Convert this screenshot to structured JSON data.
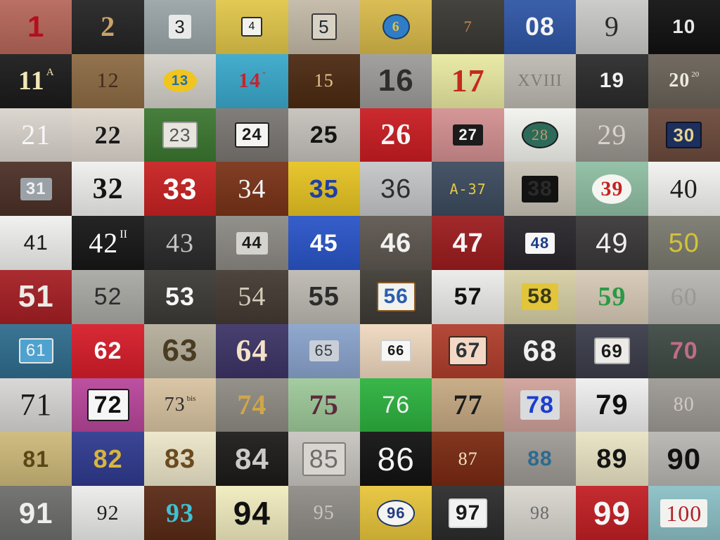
{
  "mosaic": {
    "tiles": [
      {
        "label": "1",
        "bg": "#b6675a",
        "fg": "#b30f1e",
        "font": "sans",
        "size": 42,
        "bold": true
      },
      {
        "label": "2",
        "bg": "#242424",
        "fg": "#c9a36a",
        "font": "serif",
        "size": 40,
        "bold": true
      },
      {
        "label": "3",
        "bg": "#9aa4a6",
        "fg": "#1d1d1d",
        "font": "sans",
        "size": 26,
        "bold": false,
        "plate": "#e8eaea"
      },
      {
        "label": "4",
        "bg": "#e1c64a",
        "fg": "#1a1a1a",
        "font": "sans",
        "size": 16,
        "bold": false,
        "plate": "#f2f2ee",
        "border": "#2c2c2c"
      },
      {
        "label": "5",
        "bg": "#c3b9a7",
        "fg": "#1f2a34",
        "font": "sans",
        "size": 26,
        "bold": false,
        "plate": "#d8d2c4",
        "border": "#3a3a3a"
      },
      {
        "label": "6",
        "bg": "#d8b94a",
        "fg": "#e4c03c",
        "font": "serif",
        "size": 20,
        "bold": true,
        "plate": "#2f7dc7",
        "border": "#1c3d66",
        "radius": "50%"
      },
      {
        "label": "7",
        "bg": "#3a3833",
        "fg": "#c68a52",
        "font": "serif",
        "size": 22,
        "bold": false
      },
      {
        "label": "08",
        "bg": "#2f56a5",
        "fg": "#f4f4f4",
        "font": "sans",
        "size": 36,
        "bold": true
      },
      {
        "label": "9",
        "bg": "#c9c9c7",
        "fg": "#2b2b2b",
        "font": "serif",
        "size": 40,
        "bold": false
      },
      {
        "label": "10",
        "bg": "#111111",
        "fg": "#e7e7e7",
        "font": "sans",
        "size": 28,
        "bold": true
      },
      {
        "label": "11",
        "sup": "A",
        "bg": "#1b1b1b",
        "fg": "#f2e7b7",
        "font": "serif",
        "size": 38,
        "bold": true
      },
      {
        "label": "12",
        "bg": "#8d6b44",
        "fg": "#3f2c1c",
        "font": "serif",
        "size": 30,
        "bold": false
      },
      {
        "label": "13",
        "bg": "#d3d0c9",
        "fg": "#246ca8",
        "font": "sans",
        "size": 20,
        "bold": true,
        "plate": "#f0c51f",
        "radius": "50%"
      },
      {
        "label": "14",
        "sup": "\"",
        "bg": "#3aa8cb",
        "fg": "#c7242e",
        "font": "serif",
        "size": 30,
        "bold": true
      },
      {
        "label": "15",
        "bg": "#4c2a12",
        "fg": "#e8c78f",
        "font": "serif",
        "size": 26,
        "bold": false
      },
      {
        "label": "16",
        "bg": "#9d9b9a",
        "fg": "#2e2e2e",
        "font": "sans",
        "size": 44,
        "bold": true
      },
      {
        "label": "17",
        "bg": "#e9e9a2",
        "fg": "#c32a20",
        "font": "serif",
        "size": 46,
        "bold": true
      },
      {
        "label": "XVIII",
        "bg": "#bdbab2",
        "fg": "#7f7c75",
        "font": "serif",
        "size": 24,
        "bold": false
      },
      {
        "label": "19",
        "bg": "#2b2b2c",
        "fg": "#f1f1f1",
        "font": "sans",
        "size": 30,
        "bold": true
      },
      {
        "label": "20",
        "sup": "20",
        "bg": "#6a6258",
        "fg": "#ede9e1",
        "font": "serif",
        "size": 28,
        "bold": true
      },
      {
        "label": "21",
        "bg": "#d9d4cc",
        "fg": "#f7f7f7",
        "font": "serif",
        "size": 40,
        "bold": false
      },
      {
        "label": "22",
        "bg": "#ddd6cd",
        "fg": "#1b1b1b",
        "font": "serif",
        "size": 36,
        "bold": true
      },
      {
        "label": "23",
        "bg": "#3c7731",
        "fg": "#555555",
        "font": "sans",
        "size": 26,
        "bold": false,
        "plate": "#e8e5df",
        "border": "#9a9a9a"
      },
      {
        "label": "24",
        "bg": "#7a7672",
        "fg": "#1a1a1a",
        "font": "sans",
        "size": 24,
        "bold": true,
        "plate": "#f4f4f2",
        "border": "#202020"
      },
      {
        "label": "25",
        "bg": "#c5c1bb",
        "fg": "#141414",
        "font": "sans",
        "size": 34,
        "bold": true
      },
      {
        "label": "26",
        "bg": "#c91d22",
        "fg": "#f6f6f6",
        "font": "serif",
        "size": 42,
        "bold": true
      },
      {
        "label": "27",
        "bg": "#d39091",
        "fg": "#f3f3f3",
        "font": "sans",
        "size": 22,
        "bold": true,
        "plate": "#1b1b1b"
      },
      {
        "label": "28",
        "bg": "#f2f2ee",
        "fg": "#c39a6c",
        "font": "serif",
        "size": 22,
        "bold": false,
        "plate": "#2d6a5a",
        "border": "#1a1a1a",
        "radius": "50%"
      },
      {
        "label": "29",
        "bg": "#9a9690",
        "fg": "#d7d2ca",
        "font": "serif",
        "size": 40,
        "bold": false
      },
      {
        "label": "30",
        "bg": "#6c4a3c",
        "fg": "#e5d28f",
        "font": "sans",
        "size": 26,
        "bold": true,
        "plate": "#1d2f5c",
        "border": "#0c1429"
      },
      {
        "label": "31",
        "bg": "#4c3027",
        "fg": "#f0f0f0",
        "font": "sans",
        "size": 24,
        "bold": true,
        "plate": "#9aa2a8"
      },
      {
        "label": "32",
        "bg": "#efefed",
        "fg": "#141414",
        "font": "serif",
        "size": 42,
        "bold": true
      },
      {
        "label": "33",
        "bg": "#c82222",
        "fg": "#ffffff",
        "font": "sans",
        "size": 42,
        "bold": true
      },
      {
        "label": "34",
        "bg": "#7a3318",
        "fg": "#f4f4f4",
        "font": "serif",
        "size": 38,
        "bold": false
      },
      {
        "label": "35",
        "bg": "#e6c322",
        "fg": "#1f3ea6",
        "font": "sans",
        "size": 36,
        "bold": true
      },
      {
        "label": "36",
        "bg": "#c5c6c8",
        "fg": "#2d2d2d",
        "font": "sans",
        "size": 38,
        "bold": false
      },
      {
        "label": "A-37",
        "bg": "#3c4b5e",
        "fg": "#e6c94a",
        "font": "mono",
        "size": 20,
        "bold": false
      },
      {
        "label": "38",
        "bg": "#c9c3b6",
        "fg": "#2a2a2a",
        "font": "sans",
        "size": 30,
        "bold": true,
        "plate": "#121212"
      },
      {
        "label": "39",
        "bg": "#8fbea3",
        "fg": "#c52222",
        "font": "serif",
        "size": 30,
        "bold": true,
        "plate": "#f4f4f0",
        "radius": "50%"
      },
      {
        "label": "40",
        "bg": "#f2f2f0",
        "fg": "#1d1d1d",
        "font": "serif",
        "size": 38,
        "bold": false
      },
      {
        "label": "41",
        "bg": "#f0f0ee",
        "fg": "#1a1a1a",
        "font": "sans",
        "size": 30,
        "bold": false
      },
      {
        "label": "42",
        "sup": "II",
        "bg": "#171717",
        "fg": "#ffffff",
        "font": "serif",
        "size": 40,
        "bold": false
      },
      {
        "label": "43",
        "bg": "#2b2b2b",
        "fg": "#c4c4c4",
        "font": "serif",
        "size": 38,
        "bold": false
      },
      {
        "label": "44",
        "bg": "#8d8a84",
        "fg": "#1b1b1b",
        "font": "sans",
        "size": 24,
        "bold": true,
        "plate": "#d4d3cf"
      },
      {
        "label": "45",
        "bg": "#2a55c8",
        "fg": "#ffffff",
        "font": "sans",
        "size": 34,
        "bold": true
      },
      {
        "label": "46",
        "bg": "#5e5750",
        "fg": "#f2f2f2",
        "font": "sans",
        "size": 38,
        "bold": true
      },
      {
        "label": "47",
        "bg": "#9c1c1e",
        "fg": "#f4f4f4",
        "font": "sans",
        "size": 38,
        "bold": true
      },
      {
        "label": "48",
        "bg": "#28262b",
        "fg": "#1d3c86",
        "font": "sans",
        "size": 22,
        "bold": true,
        "plate": "#f6f6f6"
      },
      {
        "label": "49",
        "bg": "#3a3838",
        "fg": "#efefef",
        "font": "sans",
        "size": 40,
        "bold": false
      },
      {
        "label": "50",
        "bg": "#7a7a6f",
        "fg": "#d3c23c",
        "font": "sans",
        "size": 38,
        "bold": false
      },
      {
        "label": "51",
        "bg": "#a51f24",
        "fg": "#ecebe7",
        "font": "sans",
        "size": 44,
        "bold": true
      },
      {
        "label": "52",
        "bg": "#a9a9a4",
        "fg": "#2d2d2d",
        "font": "sans",
        "size": 34,
        "bold": false
      },
      {
        "label": "53",
        "bg": "#3d3b37",
        "fg": "#f6f6f6",
        "font": "sans",
        "size": 36,
        "bold": true
      },
      {
        "label": "54",
        "bg": "#433a32",
        "fg": "#d4cbb9",
        "font": "serif",
        "size": 38,
        "bold": false
      },
      {
        "label": "55",
        "bg": "#bdb9b2",
        "fg": "#2c2c2c",
        "font": "sans",
        "size": 38,
        "bold": true
      },
      {
        "label": "56",
        "bg": "#3f3b35",
        "fg": "#2a5db0",
        "font": "sans",
        "size": 30,
        "bold": true,
        "plate": "#f2f2ee",
        "border": "#8a5b24"
      },
      {
        "label": "57",
        "bg": "#ebebe9",
        "fg": "#121212",
        "font": "sans",
        "size": 34,
        "bold": true
      },
      {
        "label": "58",
        "bg": "#d6cfa5",
        "fg": "#3a3a16",
        "font": "sans",
        "size": 30,
        "bold": true,
        "plate": "#e2c53a"
      },
      {
        "label": "59",
        "bg": "#d7c9b6",
        "fg": "#2a9a44",
        "font": "serif",
        "size": 38,
        "bold": true
      },
      {
        "label": "60",
        "bg": "#b8b6b2",
        "fg": "#9a9894",
        "font": "serif",
        "size": 36,
        "bold": false
      },
      {
        "label": "61",
        "bg": "#2f6d8d",
        "fg": "#f2f2f2",
        "font": "sans",
        "size": 24,
        "bold": false,
        "plate": "#4fa2cf",
        "border": "#e6e6e6"
      },
      {
        "label": "62",
        "bg": "#d61d2a",
        "fg": "#ffffff",
        "font": "sans",
        "size": 34,
        "bold": true
      },
      {
        "label": "63",
        "bg": "#b5ae9c",
        "fg": "#4a3c22",
        "font": "sans",
        "size": 44,
        "bold": true
      },
      {
        "label": "64",
        "bg": "#3d3466",
        "fg": "#f3e2c6",
        "font": "serif",
        "size": 44,
        "bold": true
      },
      {
        "label": "65",
        "bg": "#8aa3cc",
        "fg": "#3d3d3d",
        "font": "sans",
        "size": 22,
        "bold": false,
        "plate": "#c8cfd8"
      },
      {
        "label": "66",
        "bg": "#efd8bf",
        "fg": "#1a1a1a",
        "font": "sans",
        "size": 20,
        "bold": true,
        "plate": "#f7f7f5",
        "border": "#cfcfcf"
      },
      {
        "label": "67",
        "bg": "#b03e2c",
        "fg": "#2f3438",
        "font": "sans",
        "size": 30,
        "bold": true,
        "plate": "#f3d9c5",
        "border": "#3a2a22"
      },
      {
        "label": "68",
        "bg": "#2d2d2d",
        "fg": "#f0f0f0",
        "font": "sans",
        "size": 42,
        "bold": true
      },
      {
        "label": "69",
        "bg": "#3b3c4a",
        "fg": "#1a1a1a",
        "font": "sans",
        "size": 26,
        "bold": true,
        "plate": "#ecebe7",
        "border": "#aaaaaa"
      },
      {
        "label": "70",
        "bg": "#3f4a44",
        "fg": "#c06d86",
        "font": "sans",
        "size": 34,
        "bold": true
      },
      {
        "label": "71",
        "bg": "#d7d6d4",
        "fg": "#1b1b1b",
        "font": "serif",
        "size": 44,
        "bold": false
      },
      {
        "label": "72",
        "bg": "#b8469b",
        "fg": "#111111",
        "font": "sans",
        "size": 34,
        "bold": true,
        "plate": "#f6f6f6",
        "border": "#1a1a1a"
      },
      {
        "label": "73",
        "sup": "bis",
        "bg": "#d8c3a1",
        "fg": "#2c2c2c",
        "font": "serif",
        "size": 28,
        "bold": false
      },
      {
        "label": "74",
        "bg": "#8e8b83",
        "fg": "#d0a64a",
        "font": "serif",
        "size": 40,
        "bold": true
      },
      {
        "label": "75",
        "bg": "#9ec99a",
        "fg": "#5c2a3c",
        "font": "serif",
        "size": 40,
        "bold": true
      },
      {
        "label": "76",
        "bg": "#2db23f",
        "fg": "#f0f0f0",
        "font": "sans",
        "size": 34,
        "bold": false
      },
      {
        "label": "77",
        "bg": "#c6a982",
        "fg": "#1c1c1c",
        "font": "serif",
        "size": 40,
        "bold": true
      },
      {
        "label": "78",
        "bg": "#cfa29a",
        "fg": "#1b3ed0",
        "font": "sans",
        "size": 34,
        "bold": true,
        "plate": "#dadbdd"
      },
      {
        "label": "79",
        "bg": "#efefef",
        "fg": "#0f0f0f",
        "font": "sans",
        "size": 40,
        "bold": true
      },
      {
        "label": "80",
        "bg": "#9d9994",
        "fg": "#cfcac2",
        "font": "serif",
        "size": 28,
        "bold": false
      },
      {
        "label": "81",
        "bg": "#cdb97a",
        "fg": "#5a4616",
        "font": "sans",
        "size": 32,
        "bold": true
      },
      {
        "label": "82",
        "bg": "#2f3a8f",
        "fg": "#d8b63a",
        "font": "sans",
        "size": 36,
        "bold": true
      },
      {
        "label": "83",
        "bg": "#ece6c9",
        "fg": "#6b4a1e",
        "font": "sans",
        "size": 38,
        "bold": true
      },
      {
        "label": "84",
        "bg": "#1c1b1a",
        "fg": "#cbcac8",
        "font": "sans",
        "size": 42,
        "bold": true
      },
      {
        "label": "85",
        "bg": "#c8c5c0",
        "fg": "#6f6d69",
        "font": "sans",
        "size": 36,
        "bold": false,
        "plate": "#d8d5d0",
        "border": "#807d78"
      },
      {
        "label": "86",
        "bg": "#121212",
        "fg": "#f4f4f4",
        "font": "sans",
        "size": 46,
        "bold": false
      },
      {
        "label": "87",
        "bg": "#7a2a12",
        "fg": "#f0e1c6",
        "font": "serif",
        "size": 26,
        "bold": false
      },
      {
        "label": "88",
        "bg": "#9e9a94",
        "fg": "#2d6a8f",
        "font": "sans",
        "size": 30,
        "bold": true
      },
      {
        "label": "89",
        "bg": "#e9e3c4",
        "fg": "#141414",
        "font": "sans",
        "size": 38,
        "bold": true
      },
      {
        "label": "90",
        "bg": "#b7b6b2",
        "fg": "#111111",
        "font": "sans",
        "size": 42,
        "bold": true
      },
      {
        "label": "91",
        "bg": "#6d6d6b",
        "fg": "#eeeeee",
        "font": "sans",
        "size": 42,
        "bold": true
      },
      {
        "label": "92",
        "bg": "#ececeb",
        "fg": "#1e1e1e",
        "font": "serif",
        "size": 30,
        "bold": false
      },
      {
        "label": "93",
        "bg": "#5a2a16",
        "fg": "#3fc1d3",
        "font": "serif",
        "size": 38,
        "bold": true
      },
      {
        "label": "94",
        "bg": "#f1ecbf",
        "fg": "#111111",
        "font": "sans",
        "size": 46,
        "bold": true
      },
      {
        "label": "95",
        "bg": "#8f8c86",
        "fg": "#c9c6c0",
        "font": "serif",
        "size": 28,
        "bold": false
      },
      {
        "label": "96",
        "bg": "#e8c53b",
        "fg": "#233c84",
        "font": "sans",
        "size": 22,
        "bold": true,
        "plate": "#f4f4f0",
        "border": "#1d356f",
        "radius": "50%"
      },
      {
        "label": "97",
        "bg": "#2c2c2c",
        "fg": "#1a1a1a",
        "font": "sans",
        "size": 30,
        "bold": true,
        "plate": "#f2f2f2",
        "border": "#d6d6d6"
      },
      {
        "label": "98",
        "bg": "#d9d6cf",
        "fg": "#6a6a6a",
        "font": "serif",
        "size": 26,
        "bold": false
      },
      {
        "label": "99",
        "bg": "#c11f24",
        "fg": "#f6f6f6",
        "font": "sans",
        "size": 46,
        "bold": true
      },
      {
        "label": "100",
        "bg": "#8bc0c6",
        "fg": "#b0232a",
        "font": "serif",
        "size": 32,
        "bold": false,
        "plate": "#f2f2ef"
      }
    ]
  }
}
